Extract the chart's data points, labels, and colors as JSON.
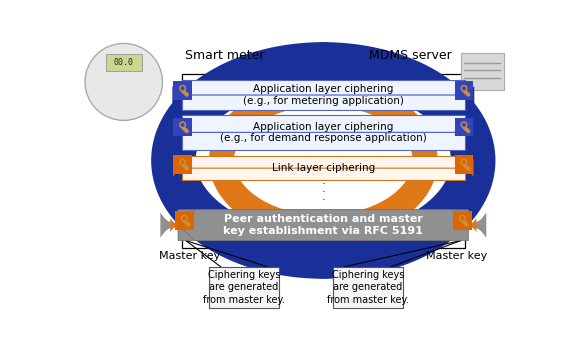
{
  "bg_color": "#ffffff",
  "smart_meter_label": "Smart meter",
  "mdms_label": "MDMS server",
  "master_key_left": "Master key",
  "master_key_right": "Master key",
  "cipher_note": "Ciphering keys\nare generated\nfrom master key.",
  "app_layer1_line1": "Application layer ciphering",
  "app_layer1_line2": "(e.g., for metering application)",
  "app_layer2_line1": "Application layer ciphering",
  "app_layer2_line2": "(e.g., for demand response application)",
  "link_layer": "Link layer ciphering",
  "peer_auth_line1": "Peer authentication and master",
  "peer_auth_line2": "key establishment via RFC 5191",
  "blue_color": "#1a3099",
  "orange_color": "#e07818",
  "gray_color": "#909090",
  "rect_fill_blue": "#e8eeff",
  "rect_fill_orange": "#fff0e0",
  "rect_edge_blue": "#4455cc",
  "rect_edge_orange": "#cc7700",
  "key_color": "#c89040",
  "key_bg_blue": "#3344bb",
  "key_bg_orange": "#dd6600"
}
